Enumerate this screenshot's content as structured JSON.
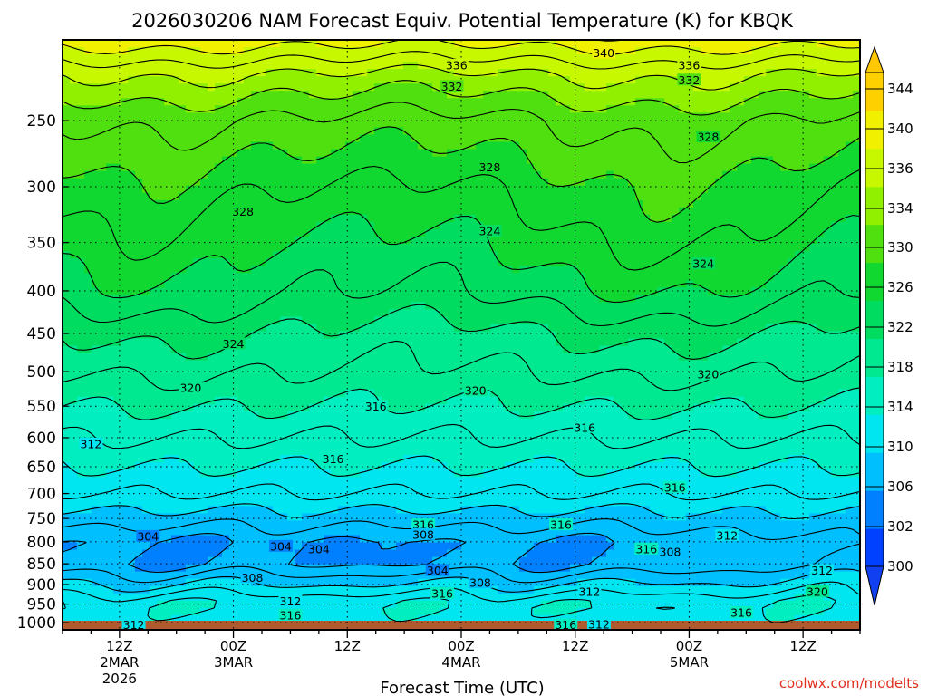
{
  "chart_data": {
    "type": "heatmap",
    "title": "2026030206 NAM Forecast Equiv. Potential Temperature (K) for KBQK",
    "xlabel": "Forecast Time (UTC)",
    "ylabel": "",
    "yaxis": {
      "scale": "log-pressure",
      "inverted": true,
      "range": [
        1020,
        200
      ],
      "ticks": [
        250,
        300,
        350,
        400,
        450,
        500,
        550,
        600,
        650,
        700,
        750,
        800,
        850,
        900,
        950,
        1000
      ]
    },
    "xaxis": {
      "range_hours": [
        0,
        84
      ],
      "ticks": [
        {
          "hour": 6,
          "lines": [
            "12Z",
            "2MAR",
            "2026"
          ]
        },
        {
          "hour": 18,
          "lines": [
            "00Z",
            "3MAR"
          ]
        },
        {
          "hour": 30,
          "lines": [
            "12Z"
          ]
        },
        {
          "hour": 42,
          "lines": [
            "00Z",
            "4MAR"
          ]
        },
        {
          "hour": 54,
          "lines": [
            "12Z"
          ]
        },
        {
          "hour": 66,
          "lines": [
            "00Z",
            "5MAR"
          ]
        },
        {
          "hour": 78,
          "lines": [
            "12Z"
          ]
        }
      ]
    },
    "grid": true,
    "colorbar": {
      "placement": "right",
      "ticks": [
        300,
        302,
        306,
        310,
        314,
        318,
        322,
        326,
        330,
        334,
        336,
        340,
        344
      ],
      "levels": [
        300,
        302,
        306,
        310,
        314,
        318,
        322,
        326,
        330,
        334,
        336,
        340,
        344,
        346
      ],
      "colors": [
        "#0040ff",
        "#0080ff",
        "#00bfff",
        "#00e6f0",
        "#00eec0",
        "#00e890",
        "#00dc60",
        "#10d830",
        "#50e010",
        "#90f000",
        "#c8f800",
        "#f0f000",
        "#ffd000"
      ]
    },
    "profile": {
      "pressure_hpa": [
        1000,
        950,
        900,
        850,
        800,
        750,
        700,
        650,
        600,
        550,
        500,
        450,
        400,
        350,
        300,
        250,
        220,
        200
      ],
      "theta_e_k": [
        313,
        314,
        310,
        306,
        306,
        309,
        312,
        314,
        316,
        318,
        320,
        322,
        325,
        327,
        329,
        332,
        336,
        341
      ]
    },
    "contour_labels": [
      {
        "value": "340",
        "hour": 57.0,
        "p": 208
      },
      {
        "value": "336",
        "hour": 41.5,
        "p": 215
      },
      {
        "value": "336",
        "hour": 66.0,
        "p": 215
      },
      {
        "value": "332",
        "hour": 41.0,
        "p": 228
      },
      {
        "value": "332",
        "hour": 66.0,
        "p": 224
      },
      {
        "value": "328",
        "hour": 68.0,
        "p": 262
      },
      {
        "value": "328",
        "hour": 45.0,
        "p": 285
      },
      {
        "value": "328",
        "hour": 19.0,
        "p": 322
      },
      {
        "value": "324",
        "hour": 45.0,
        "p": 340
      },
      {
        "value": "324",
        "hour": 67.5,
        "p": 372
      },
      {
        "value": "324",
        "hour": 18.0,
        "p": 464
      },
      {
        "value": "320",
        "hour": 68.0,
        "p": 505
      },
      {
        "value": "320",
        "hour": 13.5,
        "p": 524
      },
      {
        "value": "320",
        "hour": 43.5,
        "p": 528
      },
      {
        "value": "316",
        "hour": 33.0,
        "p": 552
      },
      {
        "value": "316",
        "hour": 55.0,
        "p": 585
      },
      {
        "value": "312",
        "hour": 3.0,
        "p": 612
      },
      {
        "value": "316",
        "hour": 28.5,
        "p": 638
      },
      {
        "value": "316",
        "hour": 64.5,
        "p": 690
      },
      {
        "value": "316",
        "hour": 38.0,
        "p": 765
      },
      {
        "value": "316",
        "hour": 52.5,
        "p": 765
      },
      {
        "value": "308",
        "hour": 38.0,
        "p": 786
      },
      {
        "value": "304",
        "hour": 9.0,
        "p": 790
      },
      {
        "value": "312",
        "hour": 70.0,
        "p": 788
      },
      {
        "value": "304",
        "hour": 23.0,
        "p": 812
      },
      {
        "value": "304",
        "hour": 27.0,
        "p": 818
      },
      {
        "value": "316",
        "hour": 61.5,
        "p": 818
      },
      {
        "value": "308",
        "hour": 64.0,
        "p": 825
      },
      {
        "value": "304",
        "hour": 39.5,
        "p": 868
      },
      {
        "value": "312",
        "hour": 80.0,
        "p": 868
      },
      {
        "value": "308",
        "hour": 20.0,
        "p": 885
      },
      {
        "value": "308",
        "hour": 44.0,
        "p": 898
      },
      {
        "value": "316",
        "hour": 40.0,
        "p": 925
      },
      {
        "value": "312",
        "hour": 55.5,
        "p": 921
      },
      {
        "value": "320",
        "hour": 79.5,
        "p": 920
      },
      {
        "value": "312",
        "hour": 24.0,
        "p": 945
      },
      {
        "value": "316",
        "hour": 71.5,
        "p": 975
      },
      {
        "value": "316",
        "hour": 24.0,
        "p": 982
      },
      {
        "value": "312",
        "hour": 7.5,
        "p": 1009
      },
      {
        "value": "316",
        "hour": 53.0,
        "p": 1009
      },
      {
        "value": "312",
        "hour": 56.5,
        "p": 1007
      }
    ]
  },
  "credit": "coolwx.com/modelts"
}
